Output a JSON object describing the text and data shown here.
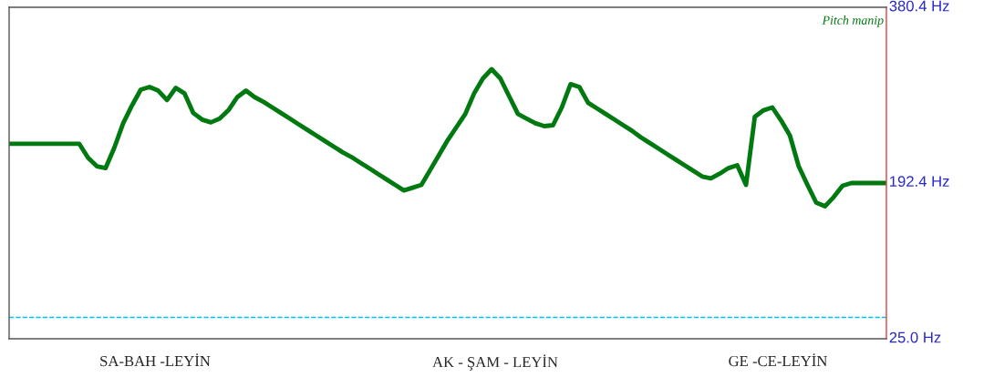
{
  "chart_data": {
    "type": "line",
    "categories": [
      null,
      null,
      null,
      null,
      null,
      null,
      null,
      null,
      null,
      null,
      null,
      null,
      null,
      null,
      null,
      null,
      null,
      null,
      null,
      null,
      null,
      null,
      null,
      null,
      null,
      null,
      null,
      null,
      null,
      null,
      null,
      null,
      null,
      null,
      null,
      null,
      null,
      null,
      null,
      null,
      null,
      null,
      null,
      null,
      null,
      null,
      null,
      null,
      null,
      null,
      null,
      null,
      null,
      null,
      null,
      null,
      null,
      null,
      null,
      null,
      null,
      null,
      null,
      null,
      null,
      null,
      null,
      null,
      null,
      null,
      null,
      null,
      null,
      null,
      null,
      null,
      null,
      null,
      null,
      null,
      null,
      null,
      null,
      null,
      null,
      null,
      null,
      null,
      null,
      null,
      null,
      null,
      null,
      null,
      null,
      null,
      null,
      null,
      null,
      null,
      null
    ],
    "series": [
      {
        "color": "#007a10",
        "values": [
          234,
          234,
          234,
          234,
          234,
          234,
          234,
          234,
          234,
          219,
          210,
          208,
          230,
          256,
          275,
          292,
          295,
          291,
          281,
          294,
          288,
          267,
          260,
          257,
          261,
          270,
          284,
          291,
          284,
          279,
          273,
          267,
          261,
          255,
          249,
          243,
          237,
          231,
          225,
          220,
          214,
          208,
          202,
          196,
          190,
          184,
          187,
          190,
          206,
          222,
          238,
          252,
          266,
          288,
          304,
          314,
          304,
          285,
          266,
          261,
          256,
          253,
          254,
          273,
          298,
          295,
          278,
          272,
          266,
          260,
          254,
          248,
          241,
          235,
          229,
          223,
          217,
          211,
          205,
          199,
          197,
          202,
          208,
          211,
          190,
          263,
          270,
          273,
          259,
          243,
          210,
          190,
          171,
          167,
          177,
          189,
          192,
          192,
          192,
          192,
          192
        ]
      }
    ],
    "ylim": [
      25.0,
      380.4
    ],
    "yticks": [
      {
        "value": 25.0,
        "label": "25.0 Hz"
      },
      {
        "value": 192.4,
        "label": "192.4 Hz"
      },
      {
        "value": 380.4,
        "label": "380.4 Hz"
      }
    ],
    "tick_labels": "y",
    "line_style": "solid",
    "grid": false,
    "ref_lines": [
      {
        "axis": "y",
        "value": 48,
        "color": "#00c0f0",
        "line_style": "dashed"
      }
    ],
    "annotations": [
      "Pitch manip",
      "SA-BAH -LEYİN",
      "AK - ŞAM - LEYİN",
      "GE -CE-LEYİN"
    ]
  }
}
